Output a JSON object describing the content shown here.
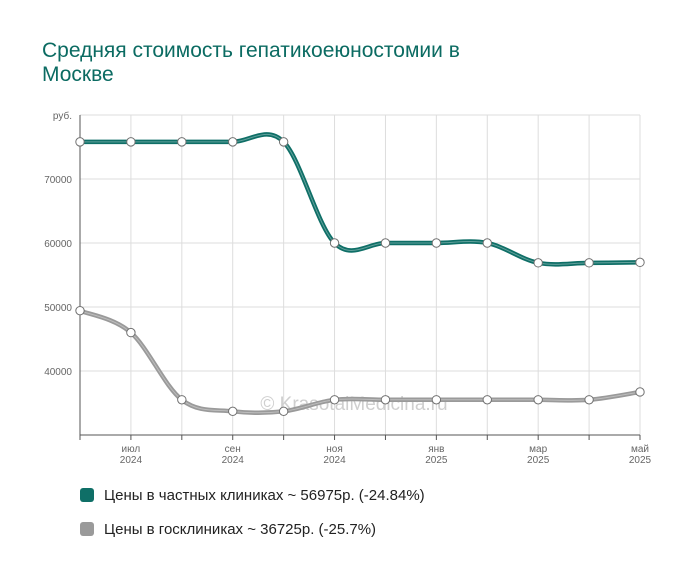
{
  "colors": {
    "title": "#0b6b62",
    "grid": "#dddddd",
    "axis": "#555555",
    "tick_label": "#666666",
    "watermark": "#cfcfcf"
  },
  "watermark": "© KrasotaiMedicina.ru",
  "chart_data": {
    "type": "line",
    "title": "Средняя стоимость гепатикоеюностомии в Москве",
    "ylabel": "руб.",
    "ylim": [
      30000,
      80000
    ],
    "yticks": [
      40000,
      50000,
      60000,
      70000
    ],
    "x": [
      "2024-06",
      "2024-07",
      "2024-08",
      "2024-09",
      "2024-10",
      "2024-11",
      "2024-12",
      "2025-01",
      "2025-02",
      "2025-03",
      "2025-04",
      "2025-05"
    ],
    "x_tick_labels": [
      {
        "x": "2024-07",
        "month": "июл",
        "year": "2024"
      },
      {
        "x": "2024-09",
        "month": "сен",
        "year": "2024"
      },
      {
        "x": "2024-11",
        "month": "ноя",
        "year": "2024"
      },
      {
        "x": "2025-01",
        "month": "янв",
        "year": "2025"
      },
      {
        "x": "2025-03",
        "month": "мар",
        "year": "2025"
      },
      {
        "x": "2025-05",
        "month": "май",
        "year": "2025"
      }
    ],
    "series": [
      {
        "name": "Цены в частных клиниках ~ 56975р. (-24.84%)",
        "color": "#0f6f67",
        "values": [
          75800,
          75800,
          75800,
          75800,
          75800,
          60000,
          60000,
          60000,
          60000,
          56900,
          56900,
          56975
        ]
      },
      {
        "name": "Цены в госклиниках ~ 36725р. (-25.7%)",
        "color": "#9a9a9a",
        "values": [
          49430,
          46000,
          35500,
          33700,
          33700,
          35500,
          35500,
          35500,
          35500,
          35500,
          35500,
          36725
        ]
      }
    ],
    "grid": true,
    "smooth": true,
    "legend": "bottom"
  }
}
